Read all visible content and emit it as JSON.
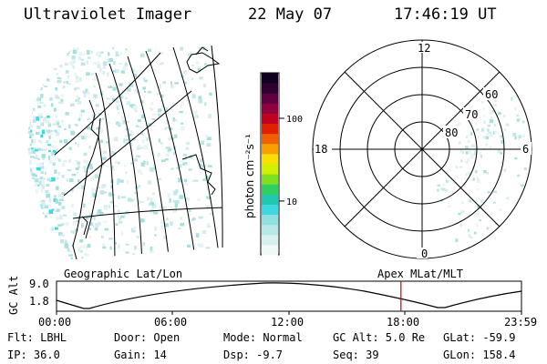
{
  "header": {
    "instrument": "Ultraviolet Imager",
    "date": "22 May 07",
    "time": "17:46:19 UT"
  },
  "colorbar": {
    "label": "photon cm⁻²s⁻¹",
    "ticks": [
      {
        "label": "100",
        "value": 100
      },
      {
        "label": "10",
        "value": 10
      }
    ]
  },
  "geo_panel": {
    "caption": "Geographic Lat/Lon"
  },
  "polar_panel": {
    "caption": "Apex MLat/MLT",
    "mlt_labels": {
      "top": "12",
      "left": "18",
      "right": "6",
      "bottom": "0"
    },
    "lat_labels": [
      "60",
      "70",
      "80"
    ]
  },
  "orbit_plot": {
    "ylabel": "GC Alt",
    "y_ticks": [
      "9.0",
      "1.8"
    ],
    "x_ticks": [
      "00:00",
      "06:00",
      "12:00",
      "18:00",
      "23:59"
    ],
    "marker_time": "17:46"
  },
  "footer": {
    "flt": "Flt: LBHL",
    "ip": "IP: 36.0",
    "door": "Door: Open",
    "gain": "Gain: 14",
    "mode": "Mode: Normal",
    "dsp": "Dsp:   -9.7",
    "gcalt": "GC Alt: 5.0 Re",
    "seq": "Seq: 39",
    "glat": "GLat: -59.9",
    "glon": "GLon: 158.4"
  },
  "colors": {
    "marker": "#d00000",
    "aurora": "#40d8e0"
  }
}
